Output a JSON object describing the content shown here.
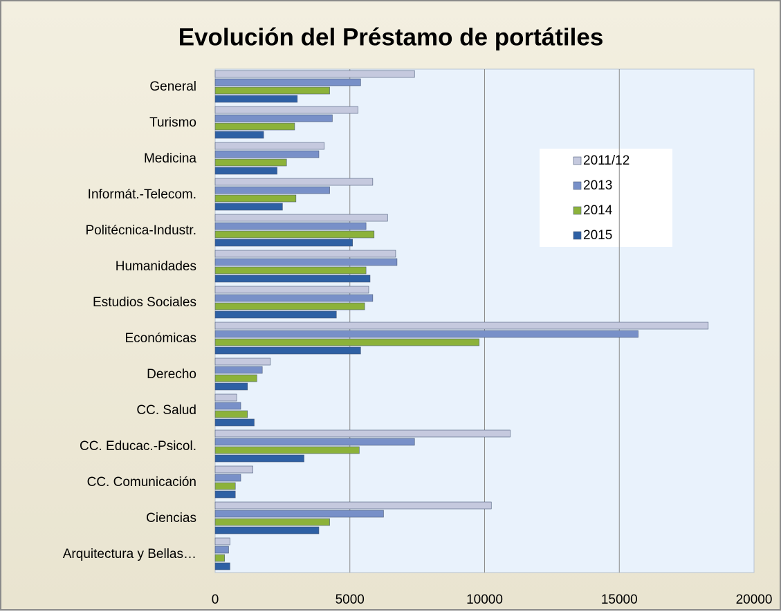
{
  "chart_data": {
    "type": "barh",
    "title": "Evolución del Préstamo de portátiles",
    "categories": [
      "General",
      "Turismo",
      "Medicina",
      "Informát.-Telecom.",
      "Politécnica-Industr.",
      "Humanidades",
      "Estudios Sociales",
      "Económicas",
      "Derecho",
      "CC. Salud",
      "CC. Educac.-Psicol.",
      "CC. Comunicación",
      "Ciencias",
      "Arquitectura y Bellas…"
    ],
    "series": [
      {
        "name": "2011/12",
        "color": "#c5c9de",
        "values": [
          7400,
          5300,
          4050,
          5850,
          6400,
          6700,
          5700,
          18300,
          2050,
          800,
          10950,
          1400,
          10250,
          550
        ]
      },
      {
        "name": "2013",
        "color": "#7890c8",
        "values": [
          5400,
          4350,
          3850,
          4250,
          5600,
          6750,
          5850,
          15700,
          1750,
          950,
          7400,
          950,
          6250,
          500
        ]
      },
      {
        "name": "2014",
        "color": "#8cb23a",
        "values": [
          4250,
          2950,
          2650,
          3000,
          5900,
          5600,
          5550,
          9800,
          1550,
          1200,
          5350,
          750,
          4250,
          350
        ]
      },
      {
        "name": "2015",
        "color": "#2e60a4",
        "values": [
          3050,
          1800,
          2300,
          2500,
          5100,
          5750,
          4500,
          5400,
          1200,
          1450,
          3300,
          750,
          3850,
          550
        ]
      }
    ],
    "xlim": [
      0,
      20000
    ],
    "xticks": [
      0,
      5000,
      10000,
      15000,
      20000
    ],
    "grid": true,
    "legend": "right"
  }
}
